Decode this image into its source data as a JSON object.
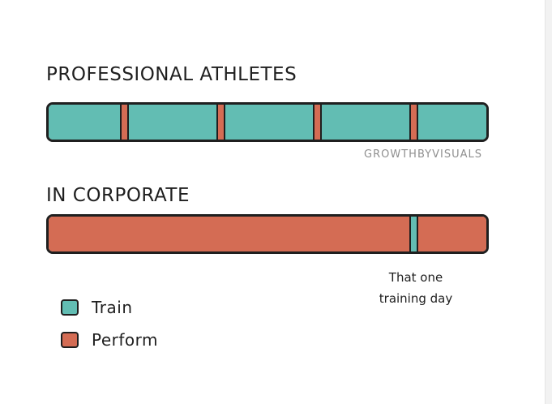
{
  "colors": {
    "train": "#62bdb3",
    "perform": "#d46c54",
    "outline": "#1f1f1f"
  },
  "professional": {
    "title": "PROFESSIONAL ATHLETES",
    "segments": [
      {
        "kind": "train",
        "value": 16
      },
      {
        "kind": "perform",
        "value": 1.6
      },
      {
        "kind": "train",
        "value": 20
      },
      {
        "kind": "perform",
        "value": 1.6
      },
      {
        "kind": "train",
        "value": 20
      },
      {
        "kind": "perform",
        "value": 1.6
      },
      {
        "kind": "train",
        "value": 20
      },
      {
        "kind": "perform",
        "value": 1.6
      },
      {
        "kind": "train",
        "value": 15.6
      }
    ]
  },
  "watermark": "GROWTHBYVISUALS",
  "corporate": {
    "title": "IN CORPORATE",
    "segments": [
      {
        "kind": "perform",
        "value": 82.4
      },
      {
        "kind": "train",
        "value": 1.6
      },
      {
        "kind": "perform",
        "value": 16
      }
    ]
  },
  "annotation": {
    "line1": "That one",
    "line2": "training day"
  },
  "legend": {
    "train_label": "Train",
    "perform_label": "Perform"
  }
}
